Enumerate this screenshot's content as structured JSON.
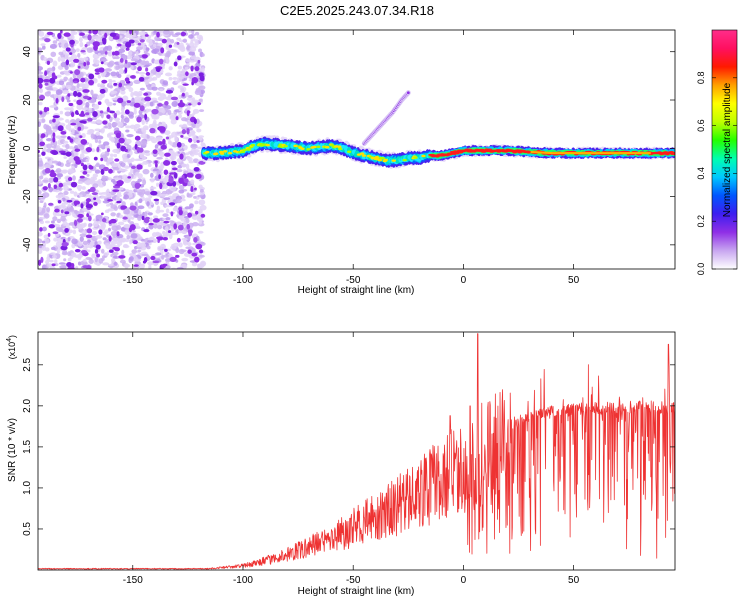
{
  "title": "C2E5.2025.243.07.34.R18",
  "chart_data": [
    {
      "type": "heatmap",
      "xlabel": "Height of straight line (km)",
      "ylabel": "Frequency (Hz)",
      "xlim": [
        -193,
        96
      ],
      "ylim": [
        -50,
        49
      ],
      "xticks": [
        -150,
        -100,
        -50,
        0,
        50
      ],
      "yticks": [
        -40,
        -20,
        0,
        20,
        40
      ],
      "grid": false,
      "colorbar": {
        "label": "Normalized spectral amplitude",
        "range": [
          0,
          1
        ],
        "ticks": [
          "0.0",
          "0.2",
          "0.4",
          "0.6",
          "0.8"
        ],
        "colors": [
          "#ffffff",
          "#c8a6f0",
          "#8f2fe6",
          "#3d1ef0",
          "#0056ff",
          "#00c8ff",
          "#00ffb0",
          "#24ff00",
          "#c0ff00",
          "#ffff00",
          "#ffa000",
          "#ff1a00",
          "#ff1060",
          "#ff2d8a"
        ]
      },
      "noise_region_x": [
        -193,
        -118
      ],
      "main_track": {
        "x": [
          -118,
          -110,
          -100,
          -95,
          -90,
          -80,
          -70,
          -60,
          -55,
          -50,
          -45,
          -40,
          -35,
          -30,
          -25,
          -20,
          -15,
          -10,
          -5,
          0,
          10,
          20,
          40,
          60,
          80,
          96
        ],
        "y": [
          -2,
          -2,
          -1,
          1,
          2,
          1,
          0,
          1,
          0,
          -2,
          -3,
          -4,
          -5,
          -5,
          -4,
          -4,
          -3,
          -3,
          -2,
          -1,
          -1,
          -1,
          -2,
          -2,
          -2,
          -2
        ]
      },
      "secondary_track": {
        "x": [
          -45,
          -40,
          -36,
          -32,
          -28,
          -25
        ],
        "y": [
          2,
          7,
          11,
          15,
          20,
          23
        ]
      }
    },
    {
      "type": "line",
      "xlabel": "Height of straight line (km)",
      "ylabel": "SNR (10 * v/v)",
      "yscale_label": "(x10",
      "yscale_exp": "4",
      "yscale_close": ")",
      "xlim": [
        -193,
        96
      ],
      "ylim": [
        0,
        2.9
      ],
      "xticks": [
        -150,
        -100,
        -50,
        0,
        50
      ],
      "yticks": [
        "0.5",
        "1.0",
        "1.5",
        "2.0",
        "2.5"
      ],
      "grid": false,
      "series": [
        {
          "color": "#ee3333",
          "envelope_x": [
            -193,
            -125,
            -115,
            -100,
            -90,
            -80,
            -70,
            -60,
            -50,
            -40,
            -30,
            -20,
            -10,
            0,
            10,
            20,
            30,
            40,
            50,
            60,
            70,
            80,
            90,
            96
          ],
          "envelope_y": [
            0.01,
            0.01,
            0.02,
            0.06,
            0.13,
            0.22,
            0.33,
            0.46,
            0.6,
            0.75,
            0.92,
            1.1,
            1.3,
            1.5,
            1.68,
            1.82,
            1.92,
            1.98,
            2.01,
            2.03,
            2.04,
            2.04,
            2.04,
            2.05
          ],
          "peaks": [
            {
              "x": 6.5,
              "y": 2.88
            },
            {
              "x": 93,
              "y": 2.75
            },
            {
              "x": -6,
              "y": 1.88
            },
            {
              "x": 3,
              "y": 2.0
            }
          ]
        }
      ]
    }
  ]
}
